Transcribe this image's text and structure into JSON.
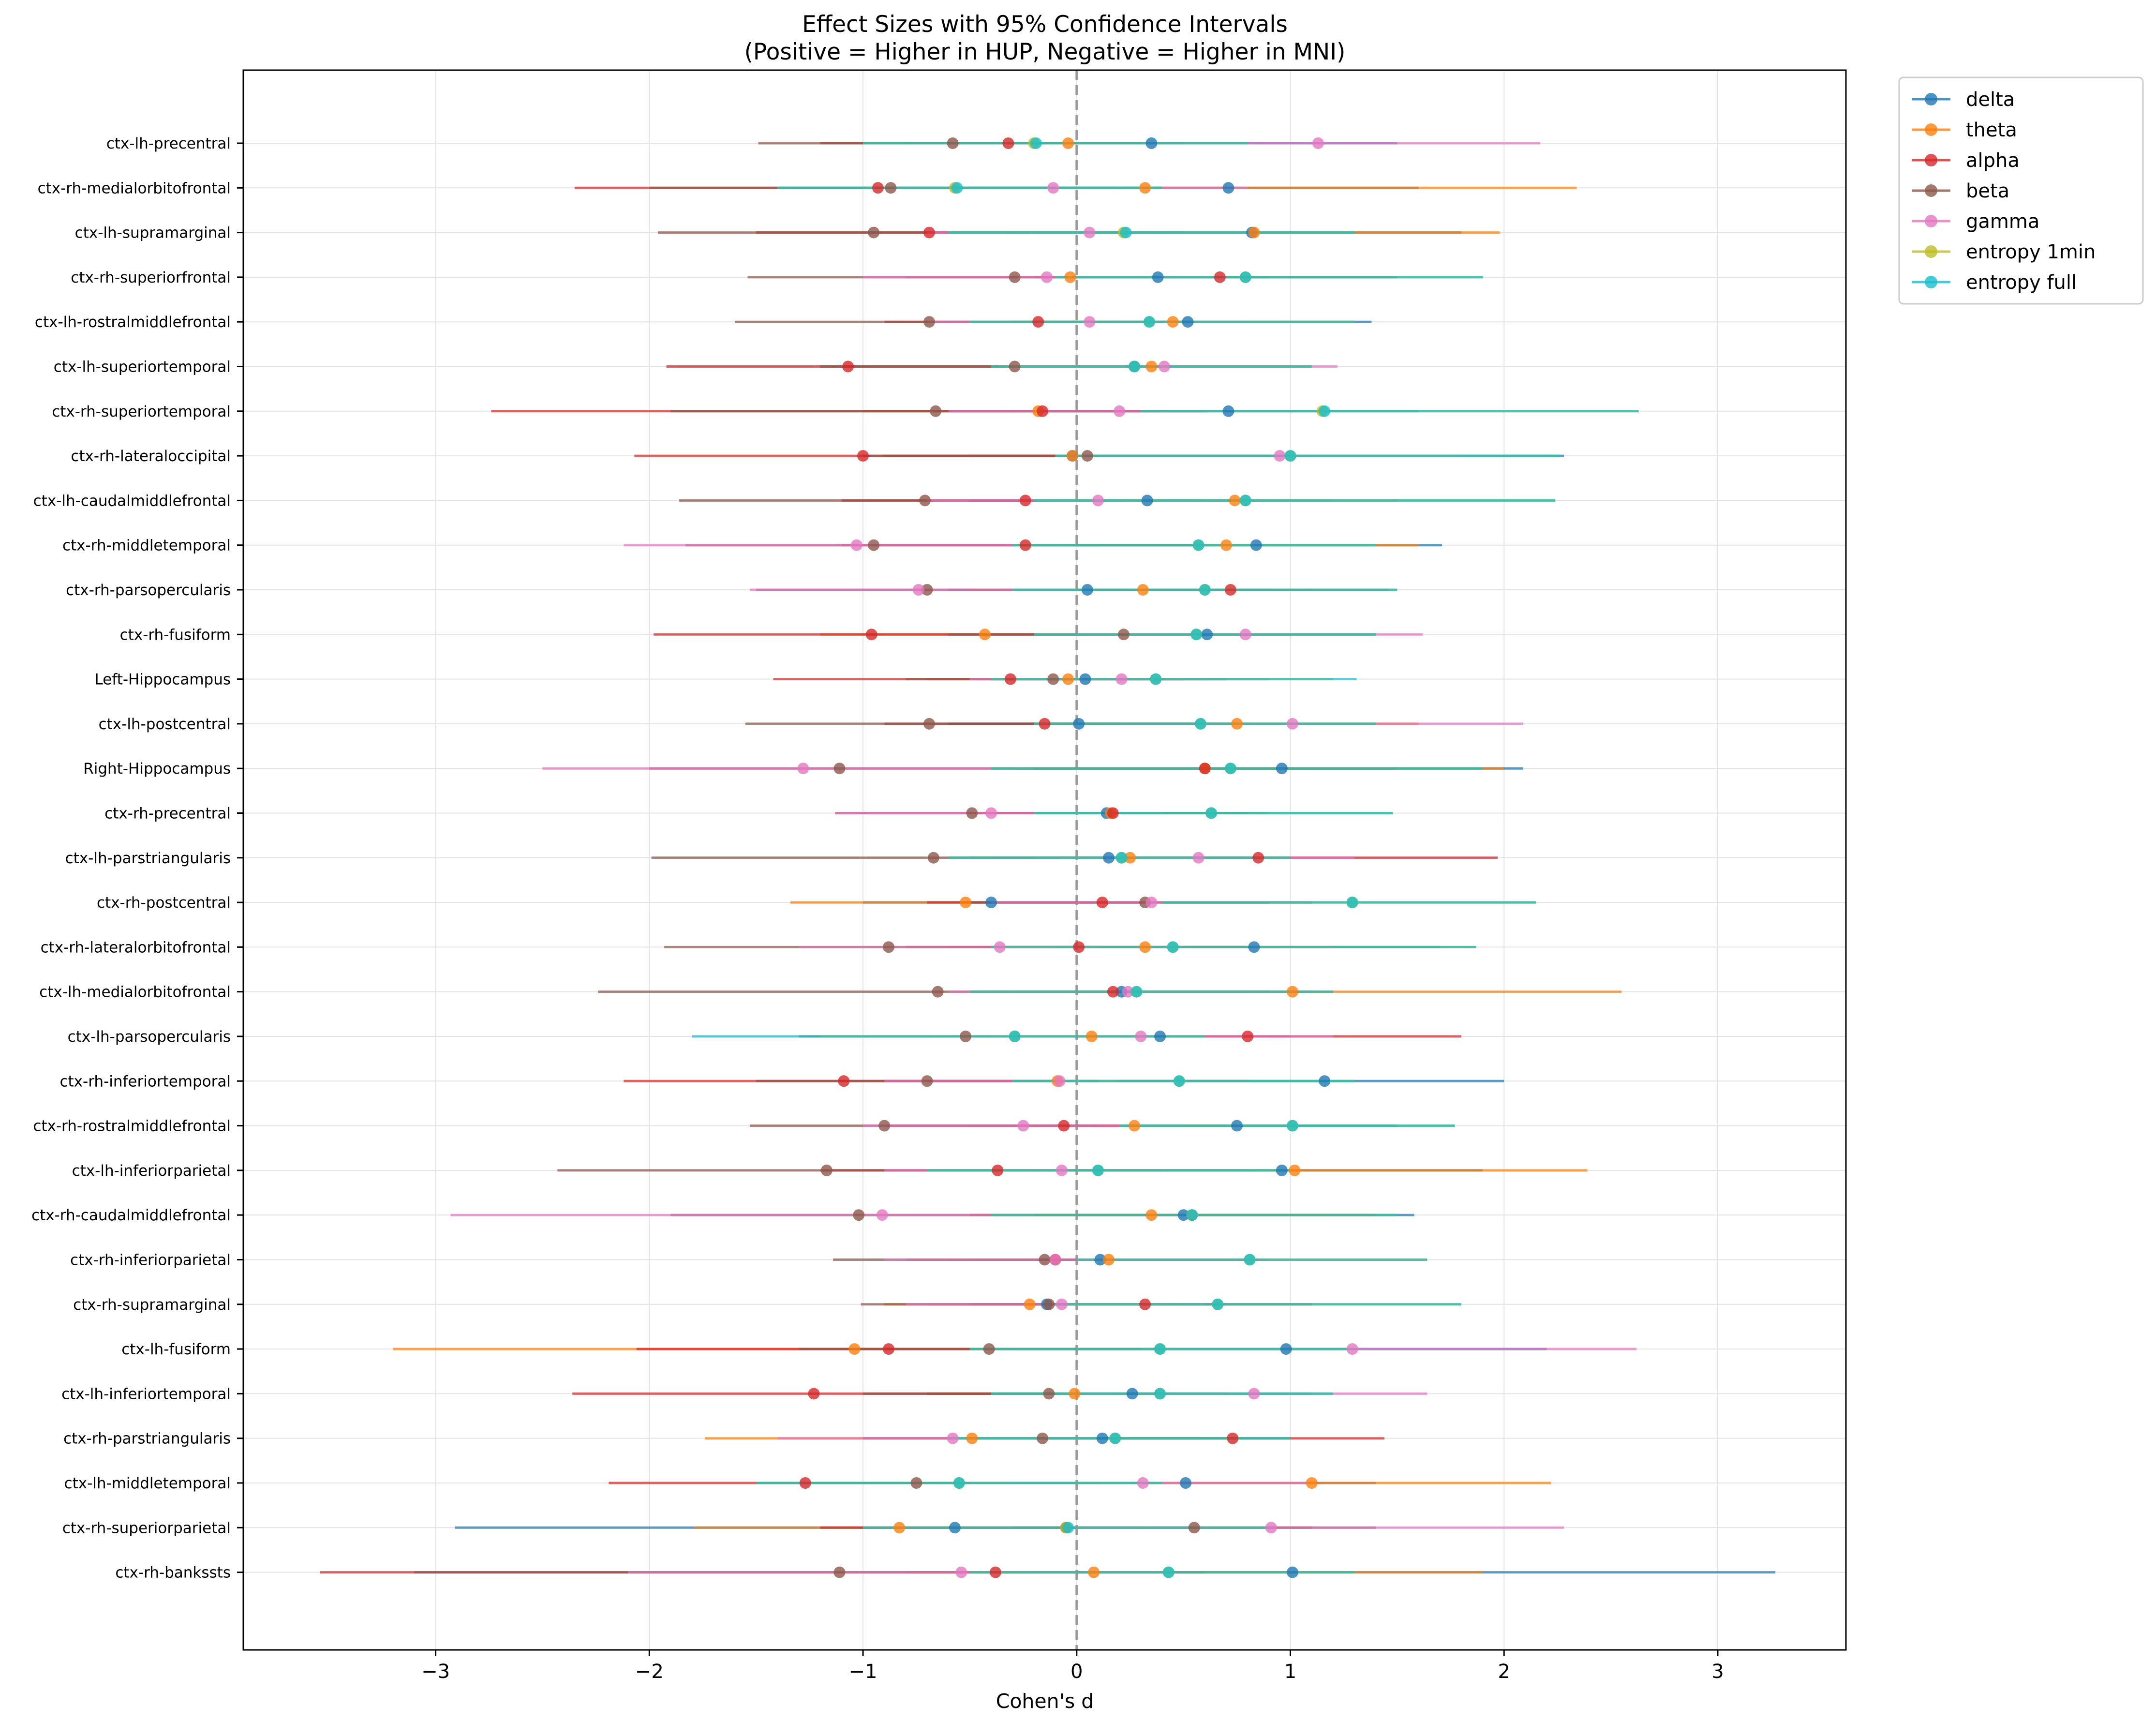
{
  "chart_data": {
    "type": "scatter",
    "title": "Effect Sizes with 95% Confidence Intervals",
    "subtitle": "(Positive = Higher in HUP, Negative = Higher in MNI)",
    "xlabel": "Cohen's d",
    "ylabel": "",
    "xlim": [
      -3.9,
      3.6
    ],
    "xticks": [
      -3,
      -2,
      -1,
      0,
      1,
      2,
      3
    ],
    "xtick_labels": [
      "−3",
      "−2",
      "−1",
      "0",
      "1",
      "2",
      "3"
    ],
    "reference_line": 0,
    "grid": true,
    "legend_position": "upper-left outside plot (right)",
    "categories": [
      "ctx-lh-precentral",
      "ctx-rh-medialorbitofrontal",
      "ctx-lh-supramarginal",
      "ctx-rh-superiorfrontal",
      "ctx-lh-rostralmiddlefrontal",
      "ctx-lh-superiortemporal",
      "ctx-rh-superiortemporal",
      "ctx-rh-lateraloccipital",
      "ctx-lh-caudalmiddlefrontal",
      "ctx-rh-middletemporal",
      "ctx-rh-parsopercularis",
      "ctx-rh-fusiform",
      "Left-Hippocampus",
      "ctx-lh-postcentral",
      "Right-Hippocampus",
      "ctx-rh-precentral",
      "ctx-lh-parstriangularis",
      "ctx-rh-postcentral",
      "ctx-rh-lateralorbitofrontal",
      "ctx-lh-medialorbitofrontal",
      "ctx-lh-parsopercularis",
      "ctx-rh-inferiortemporal",
      "ctx-rh-rostralmiddlefrontal",
      "ctx-lh-inferiorparietal",
      "ctx-rh-caudalmiddlefrontal",
      "ctx-rh-inferiorparietal",
      "ctx-rh-supramarginal",
      "ctx-lh-fusiform",
      "ctx-lh-inferiortemporal",
      "ctx-rh-parstriangularis",
      "ctx-lh-middletemporal",
      "ctx-rh-superiorparietal",
      "ctx-rh-bankssts"
    ],
    "series": [
      {
        "name": "delta",
        "color": "#1f77b4",
        "values": [
          0.35,
          0.71,
          0.82,
          0.38,
          0.52,
          0.27,
          0.71,
          -0.02,
          0.33,
          0.84,
          0.05,
          0.61,
          0.04,
          0.01,
          0.96,
          0.14,
          0.15,
          -0.4,
          0.83,
          0.21,
          0.39,
          1.16,
          0.75,
          0.96,
          0.5,
          0.11,
          -0.14,
          0.98,
          0.26,
          0.12,
          0.51,
          -0.57,
          1.01
        ],
        "ci_low": [
          -1.0,
          -0.4,
          -0.2,
          -0.2,
          -0.3,
          -0.4,
          -0.3,
          -0.5,
          -0.5,
          -0.1,
          -0.6,
          -0.2,
          -0.4,
          -0.6,
          -0.2,
          -0.4,
          -0.4,
          -1.0,
          -0.1,
          -0.4,
          -0.4,
          0.2,
          -0.2,
          -0.1,
          -0.5,
          -0.5,
          -0.7,
          -0.3,
          -0.7,
          -0.5,
          -0.5,
          -2.91,
          -0.2
        ],
        "ci_high": [
          1.5,
          1.6,
          1.8,
          1.0,
          1.38,
          1.0,
          1.6,
          2.28,
          1.2,
          1.71,
          0.9,
          1.4,
          0.7,
          0.8,
          2.09,
          0.7,
          0.8,
          0.3,
          1.7,
          0.9,
          1.0,
          2.0,
          1.5,
          1.9,
          1.58,
          0.8,
          0.5,
          2.2,
          1.1,
          1.0,
          1.4,
          0.6,
          3.27
        ]
      },
      {
        "name": "theta",
        "color": "#ff7f0e",
        "values": [
          -0.04,
          0.32,
          0.83,
          -0.03,
          0.45,
          0.35,
          -0.18,
          -0.02,
          0.74,
          0.7,
          0.31,
          -0.43,
          -0.04,
          0.75,
          0.6,
          0.16,
          0.25,
          -0.52,
          0.32,
          1.01,
          0.07,
          -0.09,
          0.27,
          1.02,
          0.35,
          0.15,
          -0.22,
          -1.04,
          -0.01,
          -0.49,
          1.1,
          -0.83,
          0.08
        ],
        "ci_low": [
          -0.8,
          -0.6,
          -0.3,
          -0.8,
          -0.3,
          -0.3,
          -1.0,
          -0.9,
          -0.1,
          -0.2,
          -0.5,
          -1.2,
          -0.7,
          -0.2,
          -0.4,
          -0.5,
          -0.5,
          -1.34,
          -0.6,
          -0.3,
          -0.7,
          -0.9,
          -0.5,
          -0.2,
          -0.5,
          -0.6,
          -0.9,
          -3.2,
          -0.7,
          -1.74,
          0.0,
          -1.79,
          -0.8
        ],
        "ci_high": [
          0.8,
          2.34,
          1.98,
          0.8,
          1.3,
          1.0,
          0.6,
          0.9,
          1.5,
          1.6,
          1.1,
          0.4,
          0.7,
          1.6,
          2.0,
          0.9,
          1.0,
          0.3,
          1.2,
          2.55,
          0.9,
          0.8,
          1.0,
          2.39,
          1.2,
          0.9,
          0.4,
          1.3,
          0.7,
          0.7,
          2.22,
          0.3,
          1.9
        ]
      },
      {
        "name": "alpha",
        "color": "#d62728",
        "values": [
          -0.32,
          -0.93,
          -0.69,
          0.67,
          -0.18,
          -1.07,
          -0.16,
          -1.0,
          -0.24,
          -0.24,
          0.72,
          -0.96,
          -0.31,
          -0.15,
          0.6,
          0.17,
          0.85,
          0.12,
          0.01,
          0.17,
          0.8,
          -1.09,
          -0.06,
          -0.37,
          0.54,
          -0.1,
          0.32,
          -0.88,
          -1.23,
          0.73,
          -1.27,
          -0.05,
          -0.38
        ],
        "ci_low": [
          -1.2,
          -2.35,
          -1.5,
          -0.2,
          -0.9,
          -1.92,
          -2.74,
          -2.07,
          -1.1,
          -1.1,
          -0.1,
          -1.98,
          -1.42,
          -0.9,
          -0.3,
          -0.5,
          -0.1,
          -0.7,
          -0.8,
          -0.5,
          -0.1,
          -2.12,
          -0.9,
          -1.2,
          -0.4,
          -0.8,
          -0.5,
          -2.06,
          -2.36,
          -0.2,
          -2.19,
          -1.2,
          -3.54
        ],
        "ci_high": [
          0.5,
          0.4,
          0.5,
          1.5,
          0.5,
          -0.2,
          0.4,
          0.0,
          0.6,
          0.6,
          1.46,
          0.0,
          0.5,
          0.6,
          1.5,
          0.8,
          1.97,
          0.9,
          0.8,
          0.9,
          1.8,
          -0.1,
          0.7,
          0.4,
          1.4,
          0.6,
          1.1,
          0.3,
          -0.1,
          1.44,
          -0.3,
          1.1,
          0.6
        ]
      },
      {
        "name": "beta",
        "color": "#8c564b",
        "values": [
          -0.58,
          -0.87,
          -0.95,
          -0.29,
          -0.69,
          -0.29,
          -0.66,
          0.05,
          -0.71,
          -0.95,
          -0.7,
          0.22,
          -0.11,
          -0.69,
          -1.11,
          -0.49,
          -0.67,
          0.32,
          -0.88,
          -0.65,
          -0.52,
          -0.7,
          -0.9,
          -1.17,
          -1.02,
          -0.15,
          -0.13,
          -0.41,
          -0.13,
          -0.16,
          -0.75,
          0.55,
          -1.11
        ],
        "ci_low": [
          -1.49,
          -2.0,
          -1.96,
          -1.54,
          -1.6,
          -1.2,
          -1.9,
          -1.0,
          -1.86,
          -1.83,
          -1.5,
          -0.6,
          -0.8,
          -1.55,
          -2.0,
          -1.13,
          -1.99,
          -0.5,
          -1.93,
          -2.24,
          -1.3,
          -1.5,
          -1.53,
          -2.43,
          -1.9,
          -1.14,
          -1.01,
          -1.3,
          -1.0,
          -1.0,
          -1.5,
          -0.3,
          -3.1
        ],
        "ci_high": [
          0.3,
          0.2,
          0.1,
          0.9,
          0.2,
          0.6,
          0.3,
          1.0,
          0.2,
          0.1,
          0.1,
          1.0,
          0.6,
          0.2,
          -0.3,
          0.1,
          0.6,
          1.1,
          0.1,
          0.8,
          0.2,
          0.1,
          0.1,
          -0.2,
          -0.2,
          0.7,
          0.7,
          0.4,
          0.7,
          0.6,
          0.1,
          1.4,
          -0.2
        ]
      },
      {
        "name": "gamma",
        "color": "#e377c2",
        "values": [
          1.13,
          -0.11,
          0.06,
          -0.14,
          0.06,
          0.41,
          0.2,
          0.95,
          0.1,
          -1.03,
          -0.74,
          0.79,
          0.21,
          1.01,
          -1.28,
          -0.4,
          0.57,
          0.35,
          -0.36,
          0.24,
          0.3,
          -0.08,
          -0.25,
          -0.07,
          -0.91,
          -0.1,
          -0.07,
          1.29,
          0.83,
          -0.58,
          0.31,
          0.91,
          -0.54
        ],
        "ci_low": [
          0.3,
          -1.0,
          -0.7,
          -1.0,
          -0.7,
          -0.3,
          -0.6,
          0.1,
          -0.7,
          -2.12,
          -1.53,
          0.0,
          -0.5,
          0.2,
          -2.5,
          -1.13,
          -0.2,
          -0.4,
          -1.3,
          -0.6,
          -0.6,
          -0.9,
          -1.0,
          -0.9,
          -2.93,
          -0.9,
          -0.8,
          0.3,
          0.0,
          -1.4,
          -0.5,
          0.0,
          -2.1
        ],
        "ci_high": [
          2.17,
          0.8,
          0.9,
          0.7,
          0.8,
          1.22,
          1.0,
          1.8,
          0.9,
          0.0,
          0.0,
          1.62,
          0.9,
          2.09,
          -0.2,
          0.4,
          1.3,
          1.1,
          0.5,
          1.1,
          1.2,
          0.8,
          0.5,
          0.8,
          -0.2,
          0.7,
          0.6,
          2.62,
          1.64,
          0.2,
          1.1,
          2.28,
          0.4
        ]
      },
      {
        "name": "entropy 1min",
        "color": "#bcbd22",
        "values": [
          -0.2,
          -0.57,
          0.22,
          0.79,
          0.34,
          0.27,
          1.15,
          1.0,
          0.79,
          0.57,
          0.6,
          0.56,
          0.37,
          0.58,
          0.72,
          0.63,
          0.21,
          1.29,
          0.45,
          0.28,
          -0.29,
          0.48,
          1.01,
          0.1,
          0.54,
          0.81,
          0.66,
          0.39,
          0.39,
          0.18,
          -0.55,
          -0.05,
          0.43
        ],
        "ci_low": [
          -1.0,
          -1.4,
          -0.6,
          -0.1,
          -0.5,
          -0.4,
          0.3,
          -0.1,
          -0.2,
          -0.3,
          -0.3,
          -0.2,
          -0.4,
          -0.2,
          -0.4,
          -0.2,
          -0.6,
          0.4,
          -0.4,
          -0.5,
          -1.2,
          -0.3,
          0.2,
          -0.7,
          -0.4,
          0.0,
          -0.1,
          -0.5,
          -0.4,
          -0.6,
          -1.5,
          -1.0,
          -0.5
        ],
        "ci_high": [
          0.8,
          0.4,
          1.3,
          1.9,
          1.3,
          1.1,
          2.63,
          2.26,
          2.24,
          1.4,
          1.5,
          1.4,
          1.2,
          1.4,
          1.9,
          1.48,
          1.0,
          2.15,
          1.87,
          1.2,
          0.6,
          1.3,
          1.77,
          1.0,
          1.5,
          1.64,
          1.8,
          1.3,
          1.2,
          1.0,
          0.4,
          0.9,
          1.3
        ]
      },
      {
        "name": "entropy full",
        "color": "#17becf",
        "values": [
          -0.19,
          -0.56,
          0.23,
          0.79,
          0.34,
          0.27,
          1.16,
          1.0,
          0.79,
          0.57,
          0.6,
          0.56,
          0.37,
          0.58,
          0.72,
          0.63,
          0.21,
          1.29,
          0.45,
          0.28,
          -0.29,
          0.48,
          1.01,
          0.1,
          0.54,
          0.81,
          0.66,
          0.39,
          0.39,
          0.18,
          -0.55,
          -0.04,
          0.43
        ],
        "ci_low": [
          -1.0,
          -1.4,
          -0.6,
          -0.1,
          -0.5,
          -0.4,
          0.3,
          -0.1,
          -0.2,
          -0.3,
          -0.3,
          -0.2,
          -0.4,
          -0.2,
          -0.4,
          -0.2,
          -0.6,
          0.4,
          -0.4,
          -0.5,
          -1.8,
          -0.3,
          0.2,
          -0.7,
          -0.4,
          0.0,
          -0.1,
          -0.5,
          -0.4,
          -0.6,
          -1.5,
          -1.0,
          -0.5
        ],
        "ci_high": [
          0.8,
          0.4,
          1.3,
          1.9,
          1.3,
          1.1,
          2.63,
          2.26,
          2.24,
          1.4,
          1.5,
          1.4,
          1.31,
          1.4,
          1.9,
          1.48,
          1.0,
          2.15,
          1.87,
          1.2,
          0.6,
          1.3,
          1.77,
          1.0,
          1.5,
          1.64,
          1.8,
          1.3,
          1.2,
          1.0,
          0.4,
          0.9,
          1.3
        ]
      }
    ]
  }
}
